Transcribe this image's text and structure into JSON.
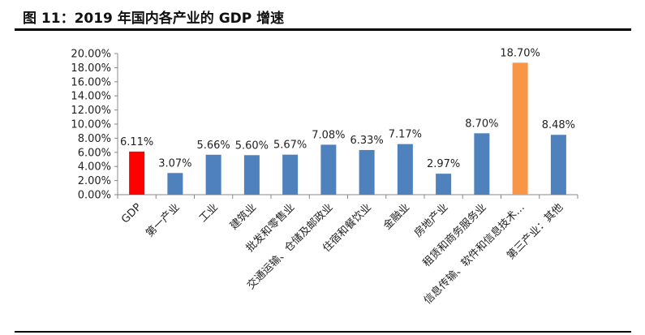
{
  "title": "图 11：2019 年国内各产业的 GDP 增速",
  "chart_data": {
    "type": "bar",
    "title": "",
    "xlabel": "",
    "ylabel": "",
    "ylim": [
      0,
      20
    ],
    "y_ticks": [
      "0.00%",
      "2.00%",
      "4.00%",
      "6.00%",
      "8.00%",
      "10.00%",
      "12.00%",
      "14.00%",
      "16.00%",
      "18.00%",
      "20.00%"
    ],
    "grid": false,
    "legend": "none",
    "categories": [
      "GDP",
      "第一产业",
      "工业",
      "建筑业",
      "批发和零售业",
      "交通运输、仓储及邮政业",
      "住宿和餐饮业",
      "金融业",
      "房地产业",
      "租赁和商务服务业",
      "信息传输、软件和信息技术…",
      "第三产业：其他"
    ],
    "values": [
      6.11,
      3.07,
      5.66,
      5.6,
      5.67,
      7.08,
      6.33,
      7.17,
      2.97,
      8.7,
      18.7,
      8.48
    ],
    "data_labels": [
      "6.11%",
      "3.07%",
      "5.66%",
      "5.60%",
      "5.67%",
      "7.08%",
      "6.33%",
      "7.17%",
      "2.97%",
      "8.70%",
      "18.70%",
      "8.48%"
    ],
    "colors": [
      "#ff0000",
      "#4f81bd",
      "#4f81bd",
      "#4f81bd",
      "#4f81bd",
      "#4f81bd",
      "#4f81bd",
      "#4f81bd",
      "#4f81bd",
      "#4f81bd",
      "#f79646",
      "#4f81bd"
    ]
  }
}
